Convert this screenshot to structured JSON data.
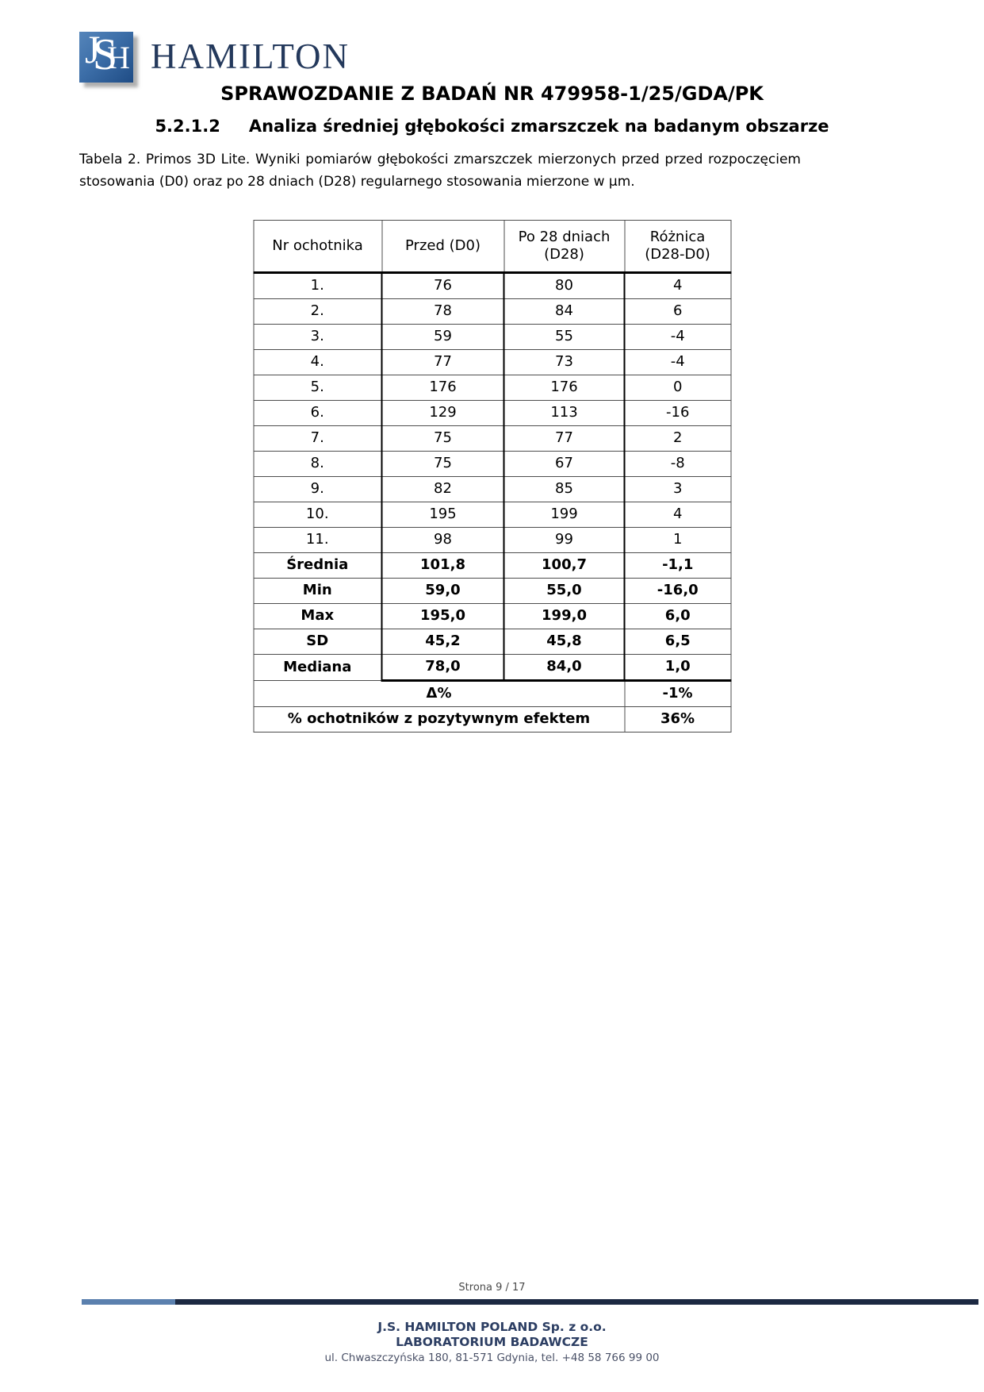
{
  "logo": {
    "monogram": "JSH",
    "monogram_letters": [
      "J",
      "S",
      "H"
    ],
    "brand": "HAMILTON"
  },
  "header": {
    "report_title": "SPRAWOZDANIE Z BADAŃ NR 479958-1/25/GDA/PK",
    "section_number": "5.2.1.2",
    "section_title": "Analiza średniej głębokości zmarszczek na badanym obszarze",
    "caption_line1": "Tabela 2. Primos 3D Lite. Wyniki pomiarów głębokości zmarszczek mierzonych przed przed rozpoczęciem",
    "caption_line2": "stosowania (D0) oraz po 28 dniach (D28) regularnego stosowania mierzone w μm."
  },
  "table": {
    "headers": [
      "Nr ochotnika",
      "Przed (D0)",
      "Po 28 dniach (D28)",
      "Różnica (D28-D0)"
    ],
    "volunteer_rows": [
      {
        "nr": "1.",
        "d0": "76",
        "d28": "80",
        "diff": "4"
      },
      {
        "nr": "2.",
        "d0": "78",
        "d28": "84",
        "diff": "6"
      },
      {
        "nr": "3.",
        "d0": "59",
        "d28": "55",
        "diff": "-4"
      },
      {
        "nr": "4.",
        "d0": "77",
        "d28": "73",
        "diff": "-4"
      },
      {
        "nr": "5.",
        "d0": "176",
        "d28": "176",
        "diff": "0"
      },
      {
        "nr": "6.",
        "d0": "129",
        "d28": "113",
        "diff": "-16"
      },
      {
        "nr": "7.",
        "d0": "75",
        "d28": "77",
        "diff": "2"
      },
      {
        "nr": "8.",
        "d0": "75",
        "d28": "67",
        "diff": "-8"
      },
      {
        "nr": "9.",
        "d0": "82",
        "d28": "85",
        "diff": "3"
      },
      {
        "nr": "10.",
        "d0": "195",
        "d28": "199",
        "diff": "4"
      },
      {
        "nr": "11.",
        "d0": "98",
        "d28": "99",
        "diff": "1"
      }
    ],
    "summary_rows": [
      {
        "label": "Średnia",
        "d0": "101,8",
        "d28": "100,7",
        "diff": "-1,1"
      },
      {
        "label": "Min",
        "d0": "59,0",
        "d28": "55,0",
        "diff": "-16,0"
      },
      {
        "label": "Max",
        "d0": "195,0",
        "d28": "199,0",
        "diff": "6,0"
      },
      {
        "label": "SD",
        "d0": "45,2",
        "d28": "45,8",
        "diff": "6,5"
      },
      {
        "label": "Mediana",
        "d0": "78,0",
        "d28": "84,0",
        "diff": "1,0"
      }
    ],
    "delta_row": {
      "label": "Δ%",
      "value": "-1%"
    },
    "percent_row": {
      "label": "% ochotników z pozytywnym efektem",
      "value": "36%"
    }
  },
  "footer": {
    "page_indicator": "Strona 9 / 17",
    "company": "J.S. HAMILTON POLAND Sp. z o.o.",
    "department": "LABORATORIUM BADAWCZE",
    "address": "ul. Chwaszczyńska 180, 81-571 Gdynia, tel. +48 58 766 99 00"
  },
  "colors": {
    "logo_blue_top": "#5585ba",
    "logo_blue_bottom": "#1f4c85",
    "brand_navy": "#24395c",
    "bar_light_blue": "#5b80ae",
    "bar_dark_navy": "#1c2942",
    "footer_navy": "#2c3e63",
    "footer_address_gray": "#4b5268",
    "table_thick_border": "#000000",
    "table_thin_border": "#4d4d4d"
  }
}
